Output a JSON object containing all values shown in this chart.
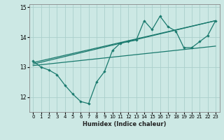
{
  "xlabel": "Humidex (Indice chaleur)",
  "bg_color": "#cce8e4",
  "line_color": "#1a7a6e",
  "grid_color": "#aacfcc",
  "xlim": [
    -0.5,
    23.5
  ],
  "ylim": [
    11.5,
    15.1
  ],
  "yticks": [
    12,
    13,
    14,
    15
  ],
  "xticks": [
    0,
    1,
    2,
    3,
    4,
    5,
    6,
    7,
    8,
    9,
    10,
    11,
    12,
    13,
    14,
    15,
    16,
    17,
    18,
    19,
    20,
    21,
    22,
    23
  ],
  "series1_x": [
    0,
    1,
    2,
    3,
    4,
    5,
    6,
    7,
    8,
    9,
    10,
    11,
    12,
    13,
    14,
    15,
    16,
    17,
    18,
    19,
    20,
    21,
    22,
    23
  ],
  "series1_y": [
    13.2,
    13.0,
    12.9,
    12.75,
    12.4,
    12.1,
    11.85,
    11.78,
    12.5,
    12.85,
    13.55,
    13.8,
    13.85,
    13.9,
    14.55,
    14.25,
    14.7,
    14.35,
    14.2,
    13.65,
    13.65,
    13.85,
    14.05,
    14.55
  ],
  "line2_x": [
    0,
    23
  ],
  "line2_y": [
    13.15,
    14.55
  ],
  "line3_x": [
    0,
    23
  ],
  "line3_y": [
    13.05,
    13.7
  ],
  "line4_x": [
    0,
    23
  ],
  "line4_y": [
    13.1,
    14.55
  ]
}
